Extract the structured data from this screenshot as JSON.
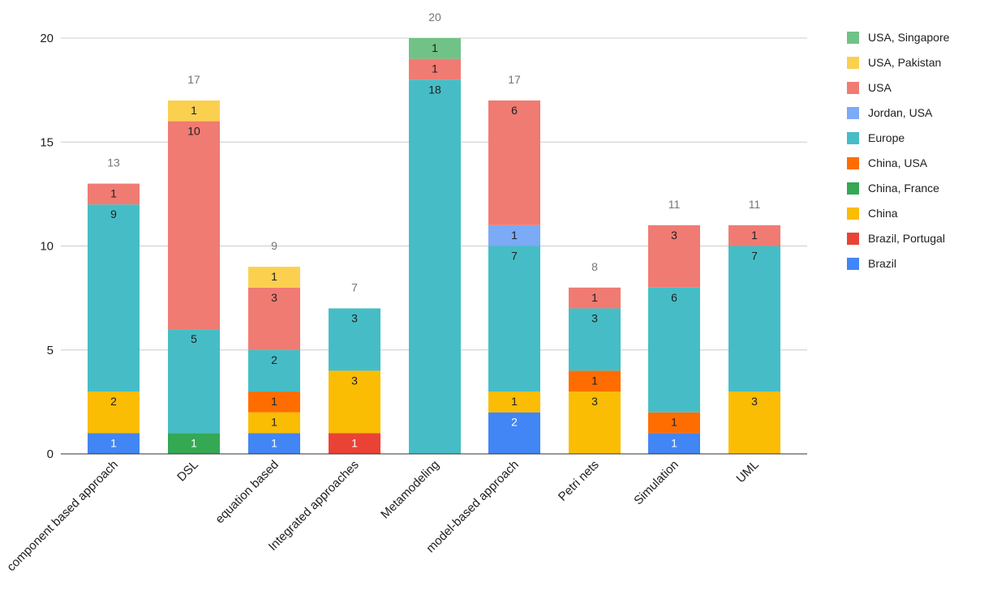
{
  "chart_data": {
    "type": "stacked-bar",
    "title": "",
    "xlabel": "",
    "ylabel": "",
    "ylim": [
      0,
      20
    ],
    "yticks": [
      0,
      5,
      10,
      15,
      20
    ],
    "grid": true,
    "legend_position": "right",
    "categories": [
      "component based approach",
      "DSL",
      "equation based",
      "Integrated approaches",
      "Metamodeling",
      "model-based approach",
      "Petri nets",
      "Simulation",
      "UML"
    ],
    "totals": [
      13,
      17,
      9,
      7,
      20,
      17,
      8,
      11,
      11
    ],
    "series": [
      {
        "name": "Brazil",
        "color": "#4285F4",
        "label_color": "#ffffff",
        "values": [
          1,
          0,
          1,
          0,
          0,
          2,
          0,
          1,
          0
        ]
      },
      {
        "name": "Brazil, Portugal",
        "color": "#EA4335",
        "label_color": "#ffffff",
        "values": [
          0,
          0,
          0,
          1,
          0,
          0,
          0,
          0,
          0
        ]
      },
      {
        "name": "China",
        "color": "#FBBC04",
        "label_color": "#202124",
        "values": [
          2,
          0,
          1,
          3,
          0,
          1,
          3,
          0,
          3
        ]
      },
      {
        "name": "China, France",
        "color": "#34A853",
        "label_color": "#ffffff",
        "values": [
          0,
          1,
          0,
          0,
          0,
          0,
          0,
          0,
          0
        ]
      },
      {
        "name": "China, USA",
        "color": "#FF6D01",
        "label_color": "#202124",
        "values": [
          0,
          0,
          1,
          0,
          0,
          0,
          1,
          1,
          0
        ]
      },
      {
        "name": "Europe",
        "color": "#46BDC6",
        "label_color": "#202124",
        "values": [
          9,
          5,
          2,
          3,
          18,
          7,
          3,
          6,
          7
        ]
      },
      {
        "name": "Jordan, USA",
        "color": "#7BAAF7",
        "label_color": "#202124",
        "values": [
          0,
          0,
          0,
          0,
          0,
          1,
          0,
          0,
          0
        ]
      },
      {
        "name": "USA",
        "color": "#F07B72",
        "label_color": "#202124",
        "values": [
          1,
          10,
          3,
          0,
          1,
          6,
          1,
          3,
          1
        ]
      },
      {
        "name": "USA, Pakistan",
        "color": "#FCD04F",
        "label_color": "#202124",
        "values": [
          0,
          1,
          1,
          0,
          0,
          0,
          0,
          0,
          0
        ]
      },
      {
        "name": "USA, Singapore",
        "color": "#71C287",
        "label_color": "#202124",
        "values": [
          0,
          0,
          0,
          0,
          1,
          0,
          0,
          0,
          0
        ]
      }
    ],
    "legend_order": [
      "USA, Singapore",
      "USA, Pakistan",
      "USA",
      "Jordan, USA",
      "Europe",
      "China, USA",
      "China, France",
      "China",
      "Brazil, Portugal",
      "Brazil"
    ]
  }
}
